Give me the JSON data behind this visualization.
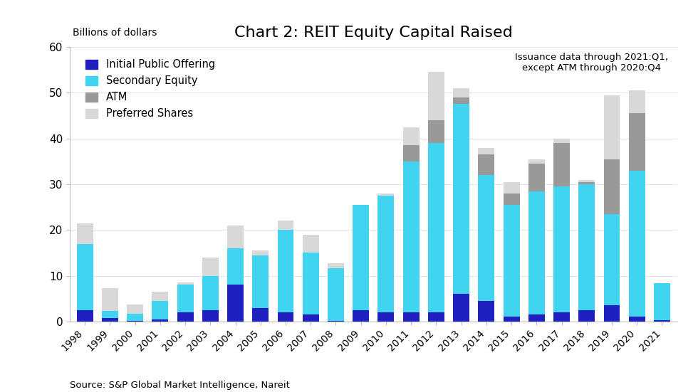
{
  "years": [
    "1998",
    "1999",
    "2000",
    "2001",
    "2002",
    "2003",
    "2004",
    "2005",
    "2006",
    "2007",
    "2008",
    "2009",
    "2010",
    "2011",
    "2012",
    "2013",
    "2014",
    "2015",
    "2016",
    "2017",
    "2018",
    "2019",
    "2020",
    "2021"
  ],
  "ipo": [
    2.5,
    0.8,
    0.2,
    0.5,
    2.0,
    2.5,
    8.0,
    3.0,
    2.0,
    1.5,
    0.2,
    2.5,
    2.0,
    2.0,
    2.0,
    6.0,
    4.5,
    1.0,
    1.5,
    2.0,
    2.5,
    3.5,
    1.0,
    0.3
  ],
  "secondary": [
    14.5,
    1.5,
    1.5,
    4.0,
    6.0,
    7.5,
    8.0,
    11.5,
    18.0,
    13.5,
    11.5,
    23.0,
    25.5,
    33.0,
    37.0,
    41.5,
    27.5,
    24.5,
    27.0,
    27.5,
    27.5,
    20.0,
    32.0,
    8.0
  ],
  "atm": [
    0.0,
    0.0,
    0.0,
    0.0,
    0.0,
    0.0,
    0.0,
    0.0,
    0.0,
    0.0,
    0.0,
    0.0,
    0.0,
    3.5,
    5.0,
    1.5,
    4.5,
    2.5,
    6.0,
    9.5,
    0.5,
    12.0,
    12.5,
    0.0
  ],
  "preferred": [
    4.5,
    5.0,
    2.0,
    2.0,
    0.5,
    4.0,
    5.0,
    1.0,
    2.0,
    4.0,
    1.0,
    0.0,
    0.5,
    4.0,
    10.5,
    2.0,
    1.5,
    2.5,
    1.0,
    1.0,
    0.5,
    14.0,
    5.0,
    0.0
  ],
  "title": "Chart 2: REIT Equity Capital Raised",
  "ylabel": "Billions of dollars",
  "ylim": [
    0,
    60
  ],
  "yticks": [
    0,
    10,
    20,
    30,
    40,
    50,
    60
  ],
  "annotation": "Issuance data through 2021:Q1,\nexcept ATM through 2020:Q4",
  "source": "Source: S&P Global Market Intelligence, Nareit",
  "color_ipo": "#2020c0",
  "color_secondary": "#40d4f0",
  "color_atm": "#999999",
  "color_preferred": "#d8d8d8",
  "legend_labels": [
    "Initial Public Offering",
    "Secondary Equity",
    "ATM",
    "Preferred Shares"
  ],
  "bar_width": 0.65
}
